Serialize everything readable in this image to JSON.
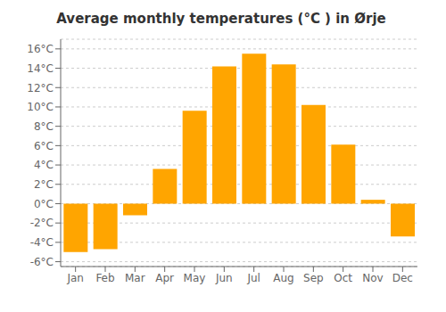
{
  "chart_data": {
    "type": "bar",
    "title": "Average monthly temperatures (°C ) in Ørje",
    "categories": [
      "Jan",
      "Feb",
      "Mar",
      "Apr",
      "May",
      "Jun",
      "Jul",
      "Aug",
      "Sep",
      "Oct",
      "Nov",
      "Dec"
    ],
    "values": [
      -5.0,
      -4.7,
      -1.2,
      3.6,
      9.6,
      14.2,
      15.5,
      14.4,
      10.2,
      6.1,
      0.4,
      -3.4
    ],
    "color": "#FFA500",
    "ylim": [
      -6.5,
      17
    ],
    "yticks": [
      {
        "value": -6,
        "label": "-6°C"
      },
      {
        "value": -4,
        "label": "-4°C"
      },
      {
        "value": -2,
        "label": "-2°C"
      },
      {
        "value": 0,
        "label": "0°C"
      },
      {
        "value": 2,
        "label": "2°C"
      },
      {
        "value": 4,
        "label": "4°C"
      },
      {
        "value": 6,
        "label": "6°C"
      },
      {
        "value": 8,
        "label": "8°C"
      },
      {
        "value": 10,
        "label": "10°C"
      },
      {
        "value": 12,
        "label": "12°C"
      },
      {
        "value": 14,
        "label": "14°C"
      },
      {
        "value": 16,
        "label": "16°C"
      }
    ],
    "grid": true
  }
}
